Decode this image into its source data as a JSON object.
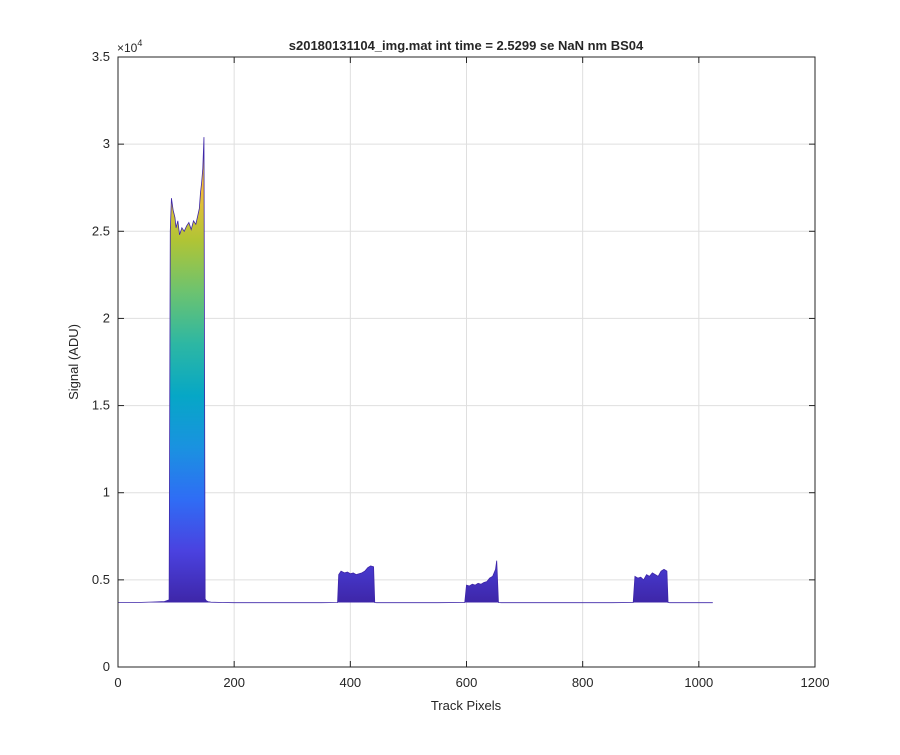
{
  "chart_data": {
    "type": "area",
    "title": "s20180131104_img.mat int time = 2.5299 se  NaN nm BS04",
    "xlabel": "Track Pixels",
    "ylabel": "Signal (ADU)",
    "xlim": [
      0,
      1200
    ],
    "ylim": [
      0,
      35000
    ],
    "x_ticks": [
      0,
      200,
      400,
      600,
      800,
      1000,
      1200
    ],
    "x_tick_labels": [
      "0",
      "200",
      "400",
      "600",
      "800",
      "1000",
      "1200"
    ],
    "y_ticks": [
      0,
      5000,
      10000,
      15000,
      20000,
      25000,
      30000,
      35000
    ],
    "y_tick_labels": [
      "0",
      "0.5",
      "1",
      "1.5",
      "2",
      "2.5",
      "3",
      "3.5"
    ],
    "y_exponent_label": "×10",
    "y_exponent_power": "4",
    "grid": true,
    "colormap": [
      "#3E26A8",
      "#4A42E0",
      "#2F6DF5",
      "#1A92E0",
      "#06A7C6",
      "#2DB7A3",
      "#6CC370",
      "#B0C435",
      "#F2BE39",
      "#F9D627"
    ],
    "baseline": 3700,
    "series": [
      {
        "x": [
          0,
          20,
          40,
          60,
          80,
          88,
          90,
          92,
          95,
          98,
          100,
          103,
          106,
          110,
          114,
          118,
          122,
          126,
          130,
          134,
          138,
          140,
          142,
          144,
          146,
          148,
          150,
          152,
          155,
          160,
          180,
          200,
          250,
          300,
          350,
          378,
          380,
          384,
          390,
          395,
          400,
          405,
          410,
          415,
          420,
          425,
          430,
          435,
          440,
          442,
          445,
          450,
          500,
          550,
          590,
          597,
          600,
          605,
          610,
          615,
          620,
          625,
          630,
          635,
          640,
          645,
          650,
          652,
          655,
          660,
          700,
          750,
          800,
          850,
          885,
          887,
          890,
          895,
          900,
          905,
          910,
          915,
          920,
          925,
          930,
          935,
          940,
          945,
          947,
          950,
          1000,
          1024
        ],
        "y": [
          3700,
          3700,
          3710,
          3730,
          3760,
          3850,
          25000,
          26900,
          26200,
          25800,
          25200,
          25600,
          24800,
          25200,
          25000,
          25300,
          25500,
          25100,
          25600,
          25400,
          26000,
          26300,
          27200,
          27800,
          28600,
          30400,
          3900,
          3800,
          3750,
          3720,
          3700,
          3690,
          3690,
          3690,
          3690,
          3700,
          5300,
          5500,
          5400,
          5450,
          5350,
          5400,
          5300,
          5350,
          5400,
          5500,
          5700,
          5800,
          5750,
          3700,
          3690,
          3690,
          3690,
          3690,
          3700,
          3700,
          4700,
          4650,
          4750,
          4700,
          4800,
          4750,
          4850,
          4900,
          5100,
          5200,
          5600,
          6100,
          3700,
          3690,
          3690,
          3690,
          3690,
          3690,
          3700,
          3700,
          5200,
          5100,
          5150,
          5000,
          5300,
          5200,
          5400,
          5300,
          5200,
          5500,
          5600,
          5500,
          3700,
          3690,
          3690,
          3690
        ]
      }
    ]
  }
}
